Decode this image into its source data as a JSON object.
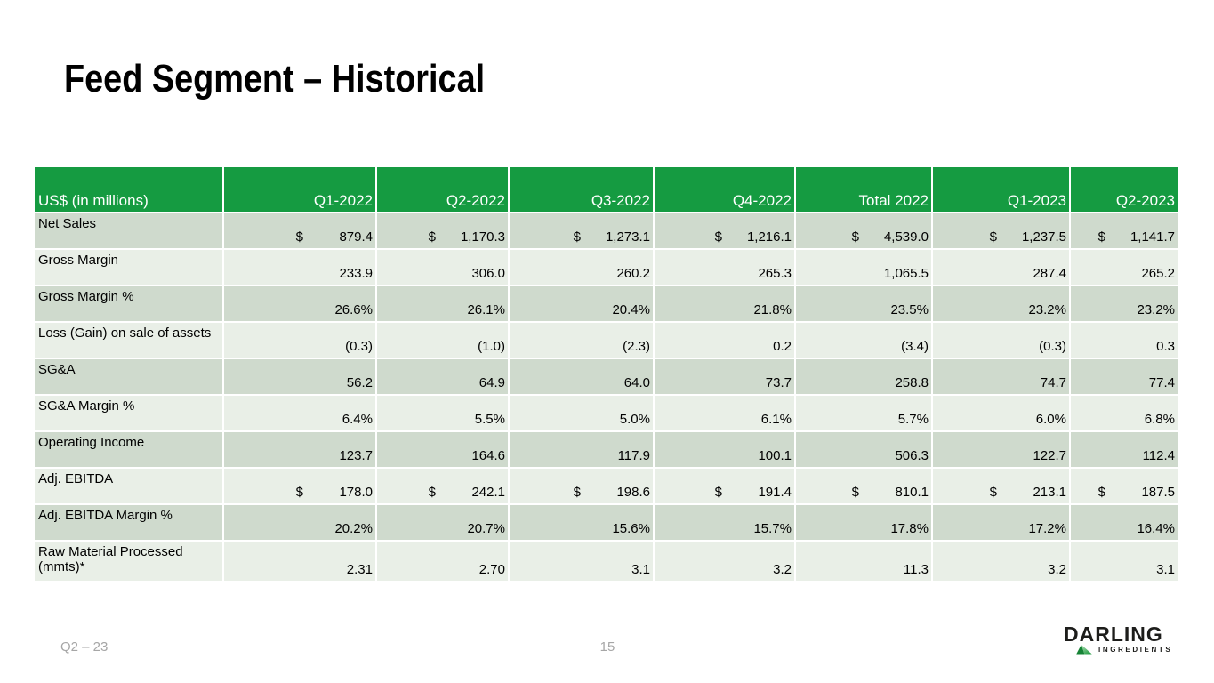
{
  "title": "Feed Segment – Historical",
  "table": {
    "currency_symbol": "$",
    "header": [
      "US$ (in millions)",
      "Q1-2022",
      "Q2-2022",
      "Q3-2022",
      "Q4-2022",
      "Total 2022",
      "Q1-2023",
      "Q2-2023"
    ],
    "rows": [
      {
        "label": "Net Sales",
        "dollar": true,
        "values": [
          "879.4",
          "1,170.3",
          "1,273.1",
          "1,216.1",
          "4,539.0",
          "1,237.5",
          "1,141.7"
        ]
      },
      {
        "label": "Gross Margin",
        "dollar": false,
        "values": [
          "233.9",
          "306.0",
          "260.2",
          "265.3",
          "1,065.5",
          "287.4",
          "265.2"
        ]
      },
      {
        "label": "Gross Margin %",
        "dollar": false,
        "values": [
          "26.6%",
          "26.1%",
          "20.4%",
          "21.8%",
          "23.5%",
          "23.2%",
          "23.2%"
        ]
      },
      {
        "label": "Loss (Gain) on sale of assets",
        "dollar": false,
        "values": [
          "(0.3)",
          "(1.0)",
          "(2.3)",
          "0.2",
          "(3.4)",
          "(0.3)",
          "0.3"
        ]
      },
      {
        "label": "SG&A",
        "dollar": false,
        "values": [
          "56.2",
          "64.9",
          "64.0",
          "73.7",
          "258.8",
          "74.7",
          "77.4"
        ]
      },
      {
        "label": "SG&A Margin %",
        "dollar": false,
        "values": [
          "6.4%",
          "5.5%",
          "5.0%",
          "6.1%",
          "5.7%",
          "6.0%",
          "6.8%"
        ]
      },
      {
        "label": "Operating Income",
        "dollar": false,
        "values": [
          "123.7",
          "164.6",
          "117.9",
          "100.1",
          "506.3",
          "122.7",
          "112.4"
        ]
      },
      {
        "label": "Adj. EBITDA",
        "dollar": true,
        "values": [
          "178.0",
          "242.1",
          "198.6",
          "191.4",
          "810.1",
          "213.1",
          "187.5"
        ]
      },
      {
        "label": "Adj. EBITDA Margin %",
        "dollar": false,
        "values": [
          "20.2%",
          "20.7%",
          "15.6%",
          "15.7%",
          "17.8%",
          "17.2%",
          "16.4%"
        ]
      },
      {
        "label": "Raw Material Processed (mmts)*",
        "dollar": false,
        "values": [
          "2.31",
          "2.70",
          "3.1",
          "3.2",
          "11.3",
          "3.2",
          "3.1"
        ]
      }
    ]
  },
  "footer": {
    "left": "Q2 – 23",
    "page_number": "15"
  },
  "logo": {
    "name": "DARLING",
    "sub": "INGREDIENTS"
  },
  "colors": {
    "header_green": "#159b41",
    "band_dark": "#cfdacd",
    "band_light": "#e9efe7",
    "footer_gray": "#a6a6a6",
    "logo_dark": "#1d1d1b",
    "pyramid_dark_green": "#168336",
    "pyramid_light_green": "#9fd8a8"
  }
}
